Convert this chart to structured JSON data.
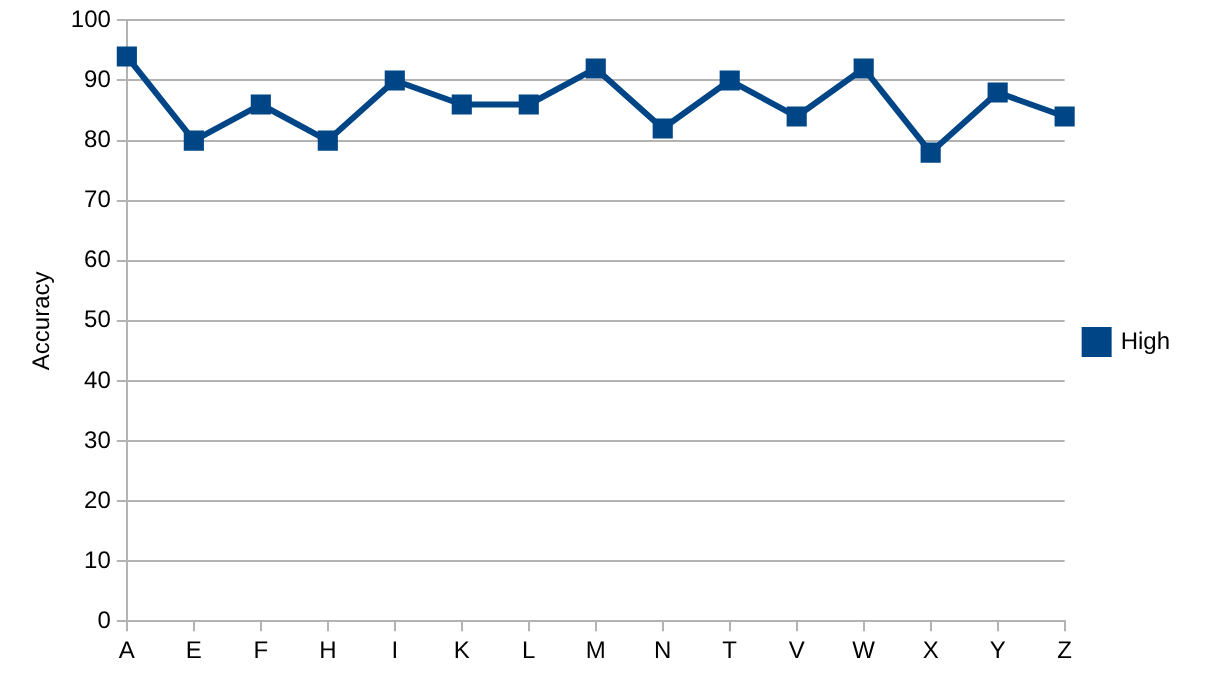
{
  "chart_data": {
    "type": "line",
    "ylabel": "Accuracy",
    "categories": [
      "A",
      "E",
      "F",
      "H",
      "I",
      "K",
      "L",
      "M",
      "N",
      "T",
      "V",
      "W",
      "X",
      "Y",
      "Z"
    ],
    "series": [
      {
        "name": "High",
        "color": "#004586",
        "values": [
          94,
          80,
          86,
          80,
          90,
          86,
          86,
          92,
          82,
          90,
          84,
          92,
          78,
          88,
          84
        ]
      }
    ],
    "ylim": [
      0,
      100
    ],
    "yticks": [
      0,
      10,
      20,
      30,
      40,
      50,
      60,
      70,
      80,
      90,
      100
    ],
    "grid": "y",
    "legend": "right",
    "marker": "square",
    "line_style": "solid"
  }
}
